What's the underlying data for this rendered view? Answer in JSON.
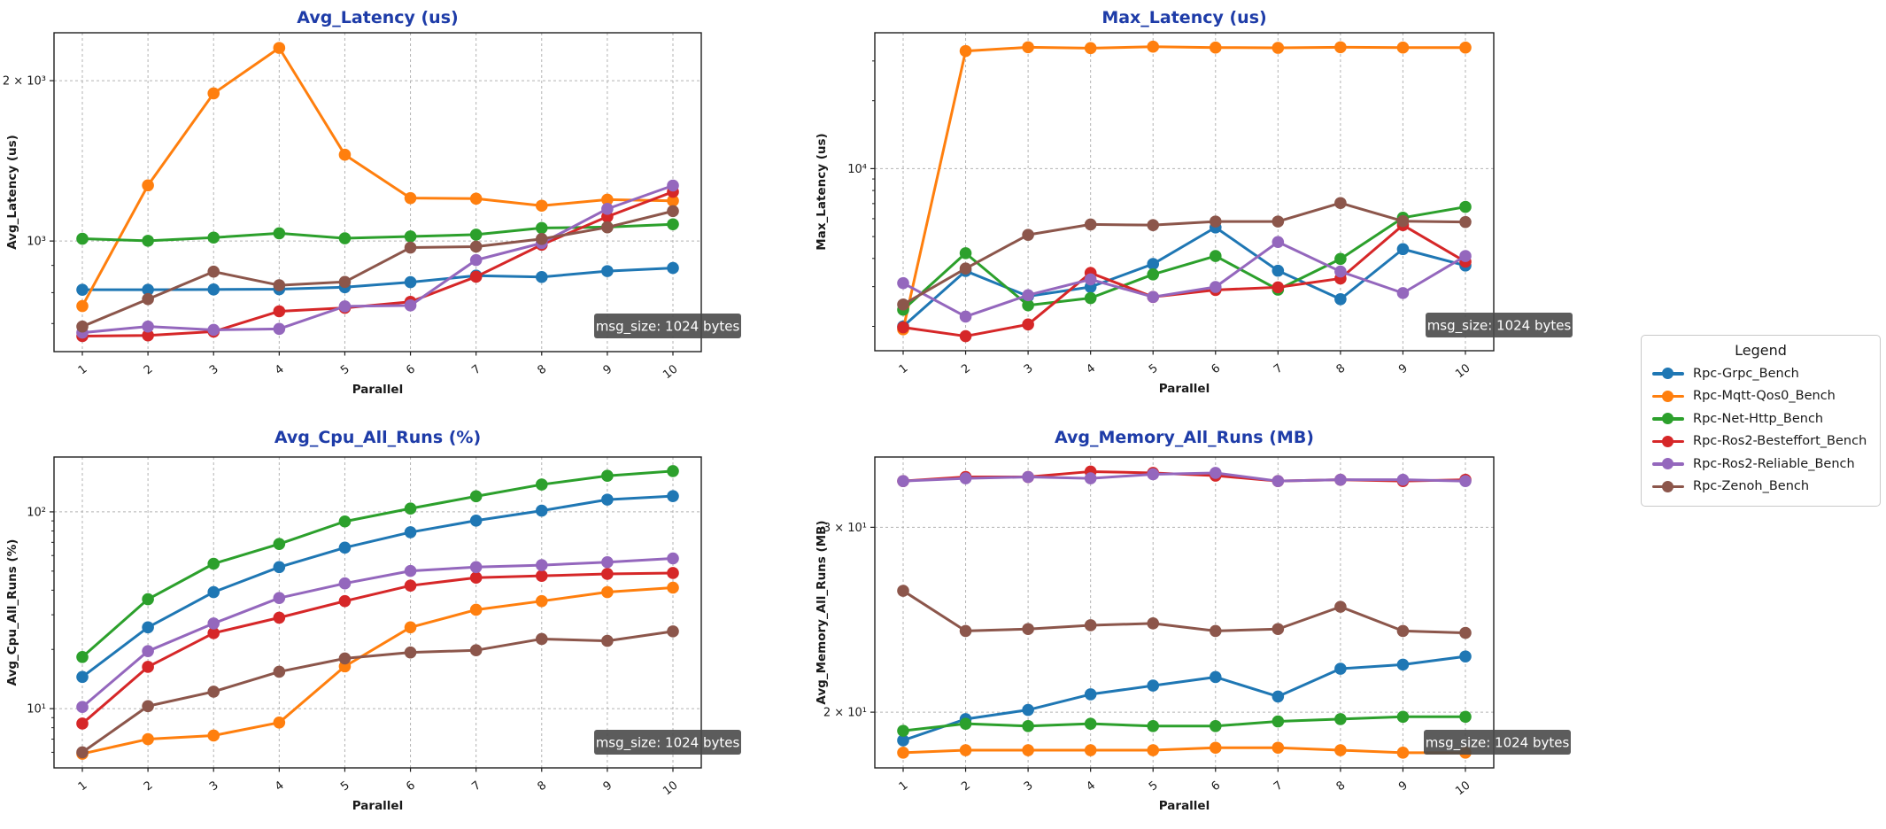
{
  "style": {
    "background": "#ffffff",
    "title_color": "#1e3ca8",
    "grid_color": "#b3b3b3",
    "spine_color": "#1f1f1f",
    "tick_color": "#1a1a1a",
    "annotation_bg": "#4a4a4a",
    "annotation_fg": "#ffffff"
  },
  "legend": {
    "title": "Legend",
    "items": [
      {
        "label": "Rpc-Grpc_Bench",
        "color": "#1f77b4"
      },
      {
        "label": "Rpc-Mqtt-Qos0_Bench",
        "color": "#ff7f0e"
      },
      {
        "label": "Rpc-Net-Http_Bench",
        "color": "#2ca02c"
      },
      {
        "label": "Rpc-Ros2-Besteffort_Bench",
        "color": "#d62728"
      },
      {
        "label": "Rpc-Ros2-Reliable_Bench",
        "color": "#9467bd"
      },
      {
        "label": "Rpc-Zenoh_Bench",
        "color": "#8c564b"
      }
    ]
  },
  "chart_data": [
    {
      "id": "avg-latency",
      "type": "line",
      "title": "Avg_Latency (us)",
      "ylabel": "Avg_Latency (us)",
      "xlabel": "Parallel",
      "yscale": "log",
      "grid": true,
      "annotation": "msg_size: 1024 bytes",
      "x": [
        1,
        2,
        3,
        4,
        5,
        6,
        7,
        8,
        9,
        10
      ],
      "xticklabels": [
        "1",
        "2",
        "3",
        "4",
        "5",
        "6",
        "7",
        "8",
        "9",
        "10"
      ],
      "ylim": [
        620,
        2460
      ],
      "yticks": [
        {
          "v": 1000,
          "label": "10³"
        },
        {
          "v": 2000,
          "label": "2 × 10³"
        }
      ],
      "series": [
        {
          "name": "Rpc-Grpc_Bench",
          "color": "#1f77b4",
          "values": [
            810,
            810,
            811,
            812,
            819,
            837,
            861,
            856,
            878,
            890
          ]
        },
        {
          "name": "Rpc-Mqtt-Qos0_Bench",
          "color": "#ff7f0e",
          "values": [
            755,
            1272,
            1893,
            2304,
            1452,
            1204,
            1201,
            1165,
            1196,
            1190
          ]
        },
        {
          "name": "Rpc-Net-Http_Bench",
          "color": "#2ca02c",
          "values": [
            1010,
            1001,
            1015,
            1034,
            1012,
            1020,
            1028,
            1058,
            1062,
            1075
          ]
        },
        {
          "name": "Rpc-Ros2-Besteffort_Bench",
          "color": "#d62728",
          "values": [
            663,
            665,
            676,
            738,
            749,
            769,
            857,
            984,
            1111,
            1237
          ]
        },
        {
          "name": "Rpc-Ros2-Reliable_Bench",
          "color": "#9467bd",
          "values": [
            673,
            691,
            681,
            684,
            754,
            757,
            921,
            991,
            1149,
            1271
          ]
        },
        {
          "name": "Rpc-Zenoh_Bench",
          "color": "#8c564b",
          "values": [
            691,
            778,
            876,
            826,
            838,
            972,
            976,
            1009,
            1061,
            1138
          ]
        }
      ]
    },
    {
      "id": "max-latency",
      "type": "line",
      "title": "Max_Latency (us)",
      "ylabel": "Max_Latency (us)",
      "xlabel": "Parallel",
      "yscale": "log",
      "grid": true,
      "annotation": "msg_size: 1024 bytes",
      "x": [
        1,
        2,
        3,
        4,
        5,
        6,
        7,
        8,
        9,
        10
      ],
      "xticklabels": [
        "1",
        "2",
        "3",
        "4",
        "5",
        "6",
        "7",
        "8",
        "9",
        "10"
      ],
      "ylim": [
        1560,
        40000
      ],
      "yticks": [
        {
          "v": 10000,
          "label": "10⁴"
        }
      ],
      "series": [
        {
          "name": "Rpc-Grpc_Bench",
          "color": "#1f77b4",
          "values": [
            2000,
            3520,
            2720,
            2990,
            3780,
            5490,
            3530,
            2640,
            4400,
            3720
          ]
        },
        {
          "name": "Rpc-Mqtt-Qos0_Bench",
          "color": "#ff7f0e",
          "values": [
            1940,
            33200,
            34500,
            34200,
            34700,
            34400,
            34300,
            34500,
            34400,
            34400
          ]
        },
        {
          "name": "Rpc-Net-Http_Bench",
          "color": "#2ca02c",
          "values": [
            2370,
            4220,
            2480,
            2670,
            3400,
            4100,
            2910,
            3980,
            6060,
            6770
          ]
        },
        {
          "name": "Rpc-Ros2-Besteffort_Bench",
          "color": "#d62728",
          "values": [
            1980,
            1810,
            2040,
            3450,
            2700,
            2900,
            2980,
            3260,
            5620,
            3870
          ]
        },
        {
          "name": "Rpc-Ros2-Reliable_Bench",
          "color": "#9467bd",
          "values": [
            3110,
            2210,
            2750,
            3230,
            2700,
            2990,
            4730,
            3500,
            2810,
            4100
          ]
        },
        {
          "name": "Rpc-Zenoh_Bench",
          "color": "#8c564b",
          "values": [
            2500,
            3610,
            5090,
            5660,
            5620,
            5830,
            5830,
            7040,
            5850,
            5800
          ]
        }
      ]
    },
    {
      "id": "avg-cpu",
      "type": "line",
      "title": "Avg_Cpu_All_Runs (%)",
      "ylabel": "Avg_Cpu_All_Runs (%)",
      "xlabel": "Parallel",
      "yscale": "log",
      "grid": true,
      "annotation": "msg_size: 1024 bytes",
      "x": [
        1,
        2,
        3,
        4,
        5,
        6,
        7,
        8,
        9,
        10
      ],
      "xticklabels": [
        "1",
        "2",
        "3",
        "4",
        "5",
        "6",
        "7",
        "8",
        "9",
        "10"
      ],
      "ylim": [
        5.0,
        190
      ],
      "yticks": [
        {
          "v": 10,
          "label": "10¹"
        },
        {
          "v": 100,
          "label": "10²"
        }
      ],
      "series": [
        {
          "name": "Rpc-Grpc_Bench",
          "color": "#1f77b4",
          "values": [
            14.5,
            25.9,
            39.1,
            52.4,
            65.8,
            78.8,
            90.3,
            101.4,
            115.4,
            120.2
          ]
        },
        {
          "name": "Rpc-Mqtt-Qos0_Bench",
          "color": "#ff7f0e",
          "values": [
            5.9,
            7.0,
            7.3,
            8.5,
            16.4,
            25.9,
            31.8,
            35.2,
            39.1,
            41.2
          ]
        },
        {
          "name": "Rpc-Net-Http_Bench",
          "color": "#2ca02c",
          "values": [
            18.3,
            36.0,
            54.5,
            68.7,
            89.4,
            104.0,
            120.0,
            137.7,
            152.5,
            161.1
          ]
        },
        {
          "name": "Rpc-Ros2-Besteffort_Bench",
          "color": "#d62728",
          "values": [
            8.4,
            16.3,
            24.2,
            29.0,
            35.2,
            42.2,
            46.3,
            47.3,
            48.4,
            48.9
          ]
        },
        {
          "name": "Rpc-Ros2-Reliable_Bench",
          "color": "#9467bd",
          "values": [
            10.2,
            19.6,
            27.1,
            36.5,
            43.3,
            50.1,
            52.4,
            53.6,
            55.5,
            58.0
          ]
        },
        {
          "name": "Rpc-Zenoh_Bench",
          "color": "#8c564b",
          "values": [
            6.0,
            10.3,
            12.2,
            15.4,
            18.0,
            19.3,
            19.8,
            22.6,
            22.1,
            24.7
          ]
        }
      ]
    },
    {
      "id": "avg-memory",
      "type": "line",
      "title": "Avg_Memory_All_Runs (MB)",
      "ylabel": "Avg_Memory_All_Runs (MB)",
      "xlabel": "Parallel",
      "yscale": "log",
      "grid": true,
      "annotation": "msg_size: 1024 bytes",
      "x": [
        1,
        2,
        3,
        4,
        5,
        6,
        7,
        8,
        9,
        10
      ],
      "xticklabels": [
        "1",
        "2",
        "3",
        "4",
        "5",
        "6",
        "7",
        "8",
        "9",
        "10"
      ],
      "ylim": [
        17.7,
        35.0
      ],
      "yticks": [
        {
          "v": 20,
          "label": "2 × 10¹"
        },
        {
          "v": 30,
          "label": "3 × 10¹"
        }
      ],
      "series": [
        {
          "name": "Rpc-Grpc_Bench",
          "color": "#1f77b4",
          "values": [
            18.8,
            19.7,
            20.1,
            20.8,
            21.2,
            21.6,
            20.7,
            22.0,
            22.2,
            22.6
          ]
        },
        {
          "name": "Rpc-Mqtt-Qos0_Bench",
          "color": "#ff7f0e",
          "values": [
            18.3,
            18.4,
            18.4,
            18.4,
            18.4,
            18.5,
            18.5,
            18.4,
            18.3,
            18.3
          ]
        },
        {
          "name": "Rpc-Net-Http_Bench",
          "color": "#2ca02c",
          "values": [
            19.2,
            19.5,
            19.4,
            19.5,
            19.4,
            19.4,
            19.6,
            19.7,
            19.8,
            19.8
          ]
        },
        {
          "name": "Rpc-Ros2-Besteffort_Bench",
          "color": "#d62728",
          "values": [
            33.2,
            33.5,
            33.5,
            33.9,
            33.8,
            33.6,
            33.2,
            33.3,
            33.2,
            33.3
          ]
        },
        {
          "name": "Rpc-Ros2-Reliable_Bench",
          "color": "#9467bd",
          "values": [
            33.2,
            33.4,
            33.5,
            33.4,
            33.7,
            33.8,
            33.2,
            33.3,
            33.3,
            33.2
          ]
        },
        {
          "name": "Rpc-Zenoh_Bench",
          "color": "#8c564b",
          "values": [
            26.1,
            23.9,
            24.0,
            24.2,
            24.3,
            23.9,
            24.0,
            25.2,
            23.9,
            23.8
          ]
        }
      ]
    }
  ]
}
